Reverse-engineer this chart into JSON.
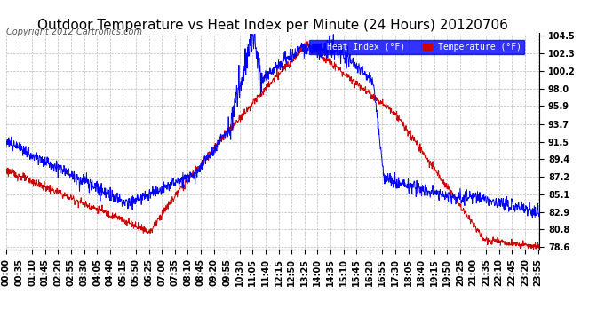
{
  "title": "Outdoor Temperature vs Heat Index per Minute (24 Hours) 20120706",
  "copyright": "Copyright 2012 Cartronics.com",
  "legend_heat": "Heat Index (°F)",
  "legend_temp": "Temperature (°F)",
  "heat_color": "#0000FF",
  "temp_color": "#CC0000",
  "background_color": "#FFFFFF",
  "plot_bg_color": "#FFFFFF",
  "grid_color": "#BBBBBB",
  "ylim_min": 78.3,
  "ylim_max": 104.8,
  "yticks": [
    78.6,
    80.8,
    82.9,
    85.1,
    87.2,
    89.4,
    91.5,
    93.7,
    95.9,
    98.0,
    100.2,
    102.3,
    104.5
  ],
  "title_fontsize": 11,
  "tick_fontsize": 7,
  "copyright_fontsize": 7
}
